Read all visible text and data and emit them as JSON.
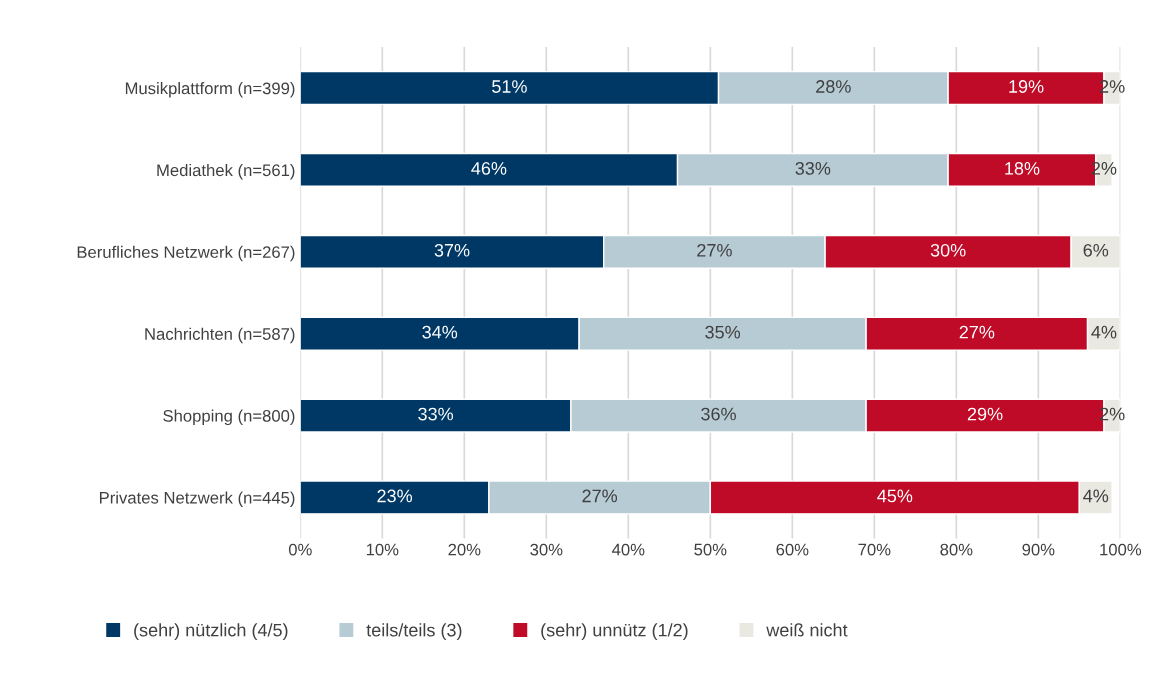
{
  "chart_data": {
    "type": "bar",
    "orientation": "horizontal",
    "stacked": true,
    "categories": [
      "Musikplattform (n=399)",
      "Mediathek (n=561)",
      "Berufliches Netzwerk (n=267)",
      "Nachrichten (n=587)",
      "Shopping (n=800)",
      "Privates Netzwerk (n=445)"
    ],
    "series": [
      {
        "name": "(sehr) nützlich (4/5)",
        "color": "#003865",
        "values": [
          51,
          46,
          37,
          34,
          33,
          23
        ],
        "value_labels": [
          "51%",
          "46%",
          "37%",
          "34%",
          "33%",
          "23%"
        ]
      },
      {
        "name": "teils/teils (3)",
        "color": "#b7cbd5",
        "values": [
          28,
          33,
          27,
          35,
          36,
          27
        ],
        "value_labels": [
          "28%",
          "33%",
          "27%",
          "35%",
          "36%",
          "27%"
        ]
      },
      {
        "name": "(sehr) unnütz (1/2)",
        "color": "#c00b28",
        "values": [
          19,
          18,
          30,
          27,
          29,
          45
        ],
        "value_labels": [
          "19%",
          "18%",
          "30%",
          "27%",
          "29%",
          "45%"
        ]
      },
      {
        "name": "weiß nicht",
        "color": "#e9e8e1",
        "values": [
          2,
          2,
          6,
          4,
          2,
          4
        ],
        "value_labels": [
          "2%",
          "2%",
          "6%",
          "4%",
          "2%",
          "4%"
        ]
      }
    ],
    "xlim": [
      0,
      100
    ],
    "xticks": [
      {
        "value": 0,
        "label": "0%"
      },
      {
        "value": 10,
        "label": "10%"
      },
      {
        "value": 20,
        "label": "20%"
      },
      {
        "value": 30,
        "label": "30%"
      },
      {
        "value": 40,
        "label": "40%"
      },
      {
        "value": 50,
        "label": "50%"
      },
      {
        "value": 60,
        "label": "60%"
      },
      {
        "value": 70,
        "label": "70%"
      },
      {
        "value": 80,
        "label": "80%"
      },
      {
        "value": 90,
        "label": "90%"
      },
      {
        "value": 100,
        "label": "100%"
      }
    ],
    "grid": "x",
    "legend": "bottom"
  }
}
